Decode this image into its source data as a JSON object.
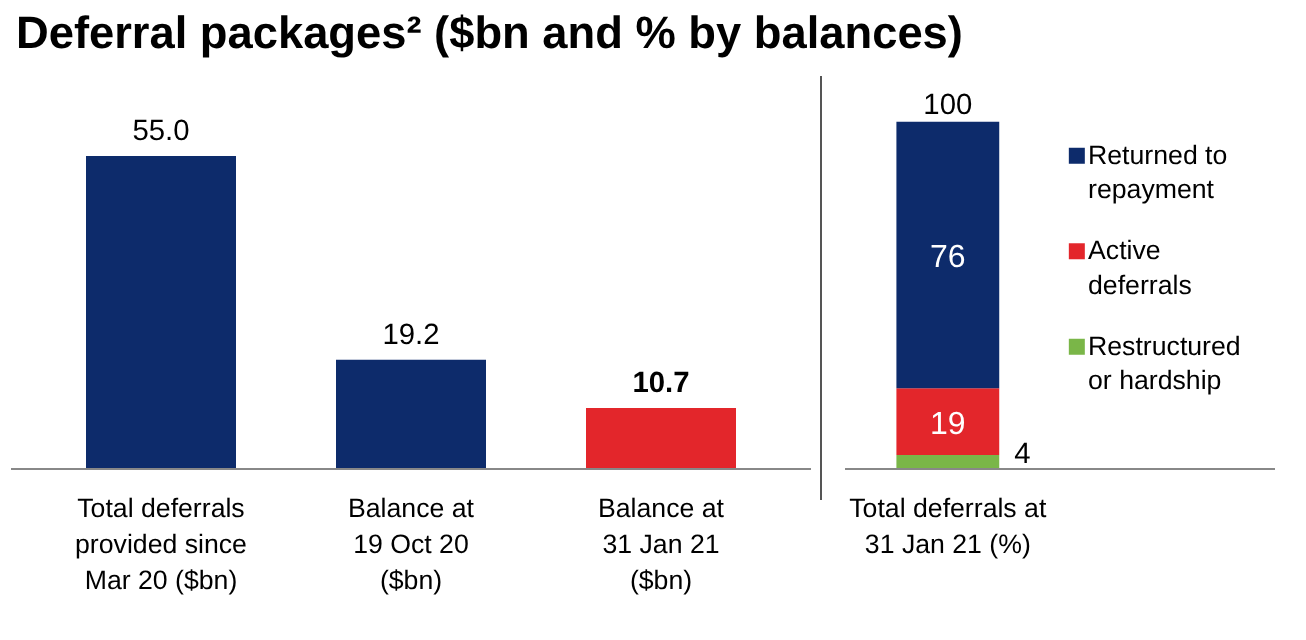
{
  "chart_data": [
    {
      "type": "bar",
      "title": "Deferral packages² ($bn and % by balances)",
      "categories": [
        "Total deferrals\nprovided since\nMar 20 ($bn)",
        "Balance at\n19 Oct 20\n($bn)",
        "Balance at\n31 Jan 21\n($bn)"
      ],
      "values": [
        55.0,
        19.2,
        10.7
      ],
      "colors": [
        "#0d2b6b",
        "#0d2b6b",
        "#e3262b"
      ],
      "value_labels": [
        "55.0",
        "19.2",
        "10.7"
      ],
      "grid": false
    },
    {
      "type": "bar",
      "stacked": true,
      "categories": [
        "Total deferrals at\n31 Jan 21 (%)"
      ],
      "series": [
        {
          "name": "Restructured or hardship",
          "color": "#7ab648",
          "values": [
            4
          ]
        },
        {
          "name": "Active deferrals",
          "color": "#e3262b",
          "values": [
            19
          ]
        },
        {
          "name": "Returned to repayment",
          "color": "#0d2b6b",
          "values": [
            76
          ]
        }
      ],
      "data_labels": true,
      "totals": [
        "100"
      ],
      "grid": false,
      "legend": "right"
    }
  ]
}
